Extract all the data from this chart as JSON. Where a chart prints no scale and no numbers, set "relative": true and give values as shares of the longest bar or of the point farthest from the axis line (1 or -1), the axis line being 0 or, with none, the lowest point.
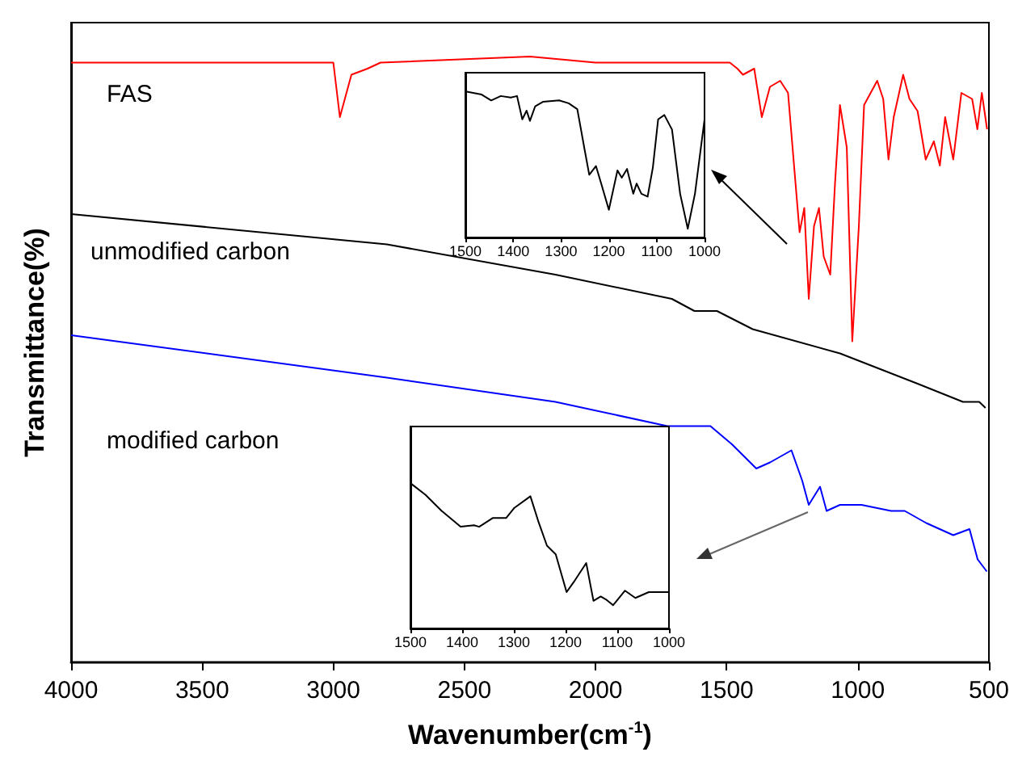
{
  "chart_data": [
    {
      "type": "line",
      "relative": true,
      "xlabel": "Wavenumber(cm$^{-1}$)",
      "ylabel": "Transmittance(%)",
      "xlim": [
        4000,
        500
      ],
      "xticks": [
        4000,
        3500,
        3000,
        2500,
        2000,
        1500,
        1000,
        500
      ],
      "grid": false,
      "legend": false,
      "marker": "none",
      "series": [
        {
          "name": "FAS",
          "color": "#ff0000",
          "x": [
            4000,
            3000,
            2975,
            2931,
            2870,
            2820,
            2250,
            2000,
            1488,
            1459,
            1438,
            1395,
            1366,
            1335,
            1296,
            1266,
            1222,
            1204,
            1187,
            1167,
            1148,
            1130,
            1105,
            1087,
            1068,
            1042,
            1021,
            996,
            976,
            926,
            903,
            883,
            863,
            827,
            803,
            772,
            741,
            710,
            687,
            667,
            636,
            605,
            564,
            544,
            527,
            507
          ],
          "values": [
            0.99,
            0.99,
            0.9,
            0.97,
            0.98,
            0.99,
            1.0,
            0.99,
            0.99,
            0.98,
            0.97,
            0.98,
            0.9,
            0.95,
            0.96,
            0.94,
            0.71,
            0.75,
            0.6,
            0.72,
            0.75,
            0.67,
            0.64,
            0.79,
            0.92,
            0.85,
            0.53,
            0.72,
            0.92,
            0.96,
            0.93,
            0.83,
            0.9,
            0.97,
            0.93,
            0.91,
            0.83,
            0.86,
            0.82,
            0.9,
            0.83,
            0.94,
            0.93,
            0.88,
            0.94,
            0.88
          ]
        },
        {
          "name": "unmodified carbon",
          "color": "#000000",
          "x": [
            4000,
            2796,
            2153,
            1709,
            1623,
            1537,
            1401,
            1068,
            772,
            599,
            537,
            513
          ],
          "values": [
            0.74,
            0.69,
            0.64,
            0.6,
            0.58,
            0.58,
            0.55,
            0.51,
            0.46,
            0.43,
            0.43,
            0.42
          ]
        },
        {
          "name": "modified carbon",
          "color": "#0000ff",
          "x": [
            4000,
            2796,
            2153,
            1726,
            1562,
            1480,
            1387,
            1335,
            1253,
            1212,
            1187,
            1144,
            1119,
            1068,
            986,
            873,
            821,
            739,
            636,
            574,
            543,
            508
          ],
          "values": [
            0.54,
            0.47,
            0.43,
            0.39,
            0.39,
            0.36,
            0.32,
            0.33,
            0.35,
            0.3,
            0.26,
            0.29,
            0.25,
            0.26,
            0.26,
            0.25,
            0.25,
            0.23,
            0.21,
            0.22,
            0.17,
            0.15
          ]
        }
      ]
    },
    {
      "type": "line",
      "relative": true,
      "xlim": [
        1500,
        1000
      ],
      "xticks": [
        1500,
        1400,
        1300,
        1200,
        1100,
        1000
      ],
      "grid": false,
      "legend": false,
      "marker": "none",
      "series": [
        {
          "color": "#000000",
          "x": [
            1497,
            1466,
            1446,
            1426,
            1405,
            1392,
            1381,
            1372,
            1365,
            1354,
            1338,
            1304,
            1284,
            1266,
            1250,
            1241,
            1227,
            1216,
            1200,
            1182,
            1173,
            1162,
            1149,
            1142,
            1132,
            1119,
            1108,
            1097,
            1084,
            1068,
            1051,
            1035,
            1020,
            1000
          ],
          "values": [
            1.0,
            0.98,
            0.94,
            0.97,
            0.96,
            0.97,
            0.81,
            0.87,
            0.8,
            0.9,
            0.93,
            0.94,
            0.92,
            0.88,
            0.59,
            0.43,
            0.49,
            0.37,
            0.19,
            0.46,
            0.41,
            0.47,
            0.3,
            0.37,
            0.3,
            0.28,
            0.48,
            0.81,
            0.84,
            0.74,
            0.3,
            0.06,
            0.3,
            0.81
          ]
        }
      ]
    },
    {
      "type": "line",
      "relative": true,
      "xlim": [
        1500,
        1000
      ],
      "xticks": [
        1500,
        1400,
        1300,
        1200,
        1100,
        1000
      ],
      "grid": false,
      "legend": false,
      "marker": "none",
      "series": [
        {
          "color": "#000000",
          "x": [
            1500,
            1471,
            1440,
            1403,
            1377,
            1367,
            1341,
            1315,
            1299,
            1268,
            1252,
            1236,
            1219,
            1198,
            1184,
            1160,
            1146,
            1132,
            1122,
            1108,
            1085,
            1065,
            1039,
            1000
          ],
          "values": [
            1.0,
            0.92,
            0.81,
            0.7,
            0.71,
            0.7,
            0.76,
            0.76,
            0.83,
            0.91,
            0.73,
            0.57,
            0.51,
            0.25,
            0.32,
            0.45,
            0.19,
            0.22,
            0.2,
            0.16,
            0.26,
            0.21,
            0.25,
            0.25
          ]
        }
      ]
    }
  ]
}
